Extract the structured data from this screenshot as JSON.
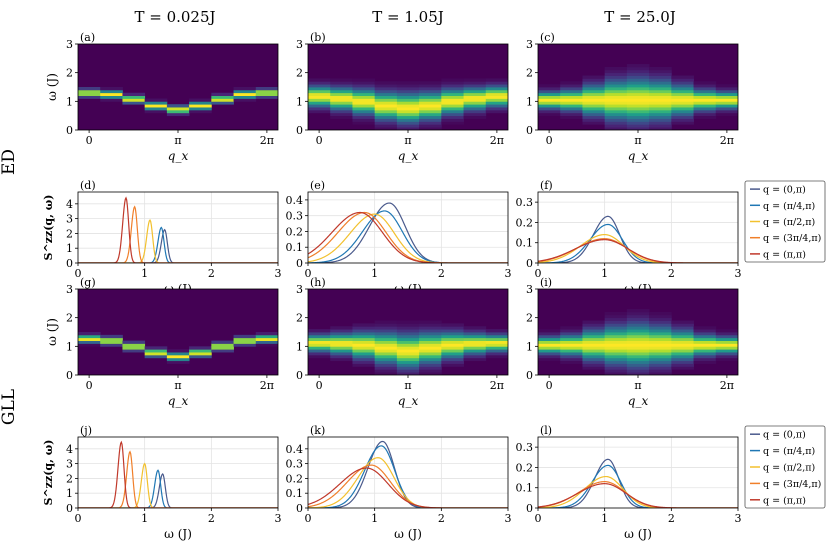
{
  "columns": [
    "T = 0.025J",
    "T = 1.05J",
    "T = 25.0J"
  ],
  "rows": [
    "ED",
    "GLL"
  ],
  "colors": {
    "series": [
      "#4a5a8c",
      "#1f77b4",
      "#f2c12e",
      "#f07f2a",
      "#c0392b"
    ],
    "heatmap_bg": "#440154",
    "legend_border": "#555555"
  },
  "legend": [
    "q = (0,π)",
    "q = (π/4,π)",
    "q = (π/2,π)",
    "q = (3π/4,π)",
    "q = (π,π)"
  ],
  "chart_data": [
    {
      "type": "heatmap",
      "panel": "(a)",
      "row": "ED",
      "column": "T = 0.025J",
      "xlabel": "q_x",
      "ylabel": "ω (J)",
      "xticks": [
        "0",
        "π",
        "2π"
      ],
      "ylim": [
        0,
        3
      ],
      "yticks": [
        0,
        1,
        2,
        3
      ],
      "peak_omega": [
        1.3,
        1.25,
        1.08,
        0.85,
        0.72,
        0.85,
        1.08,
        1.25,
        1.3
      ],
      "width": [
        0.05,
        0.05,
        0.05,
        0.05,
        0.05,
        0.05,
        0.05,
        0.05,
        0.05
      ]
    },
    {
      "type": "heatmap",
      "panel": "(b)",
      "row": "ED",
      "column": "T = 1.05J",
      "xlabel": "q_x",
      "ylabel": "",
      "xticks": [
        "0",
        "π",
        "2π"
      ],
      "ylim": [
        0,
        3
      ],
      "yticks": [
        0,
        1,
        2,
        3
      ],
      "peak_omega": [
        1.18,
        1.1,
        1.0,
        0.85,
        0.78,
        0.85,
        1.0,
        1.1,
        1.18
      ],
      "width": [
        0.22,
        0.24,
        0.27,
        0.3,
        0.32,
        0.3,
        0.27,
        0.24,
        0.22
      ]
    },
    {
      "type": "heatmap",
      "panel": "(c)",
      "row": "ED",
      "column": "T = 25.0J",
      "xlabel": "q_x",
      "ylabel": "",
      "xticks": [
        "0",
        "π",
        "2π"
      ],
      "ylim": [
        0,
        3
      ],
      "yticks": [
        0,
        1,
        2,
        3
      ],
      "peak_omega": [
        1.05,
        1.05,
        1.05,
        1.05,
        1.05,
        1.05,
        1.05,
        1.05,
        1.05
      ],
      "width": [
        0.18,
        0.22,
        0.32,
        0.42,
        0.46,
        0.42,
        0.32,
        0.22,
        0.18
      ]
    },
    {
      "type": "line",
      "panel": "(d)",
      "row": "ED",
      "column": "T = 0.025J",
      "xlabel": "ω (J)",
      "ylabel": "S^zz(q, ω)",
      "xlim": [
        0,
        3
      ],
      "ylim": [
        0,
        4.8
      ],
      "xticks": [
        0,
        1,
        2,
        3
      ],
      "yticks": [
        0,
        1,
        2,
        3,
        4
      ],
      "series": [
        {
          "name": "q = (0,π)",
          "peak": 1.3,
          "width": 0.05,
          "height": 2.25
        },
        {
          "name": "q = (π/4,π)",
          "peak": 1.25,
          "width": 0.05,
          "height": 2.4
        },
        {
          "name": "q = (π/2,π)",
          "peak": 1.08,
          "width": 0.05,
          "height": 2.9
        },
        {
          "name": "q = (3π/4,π)",
          "peak": 0.85,
          "width": 0.05,
          "height": 3.8
        },
        {
          "name": "q = (π,π)",
          "peak": 0.72,
          "width": 0.05,
          "height": 4.4
        }
      ]
    },
    {
      "type": "line",
      "panel": "(e)",
      "row": "ED",
      "column": "T = 1.05J",
      "xlabel": "ω (J)",
      "ylabel": "",
      "xlim": [
        0,
        3
      ],
      "ylim": [
        0,
        0.45
      ],
      "xticks": [
        0,
        1,
        2,
        3
      ],
      "yticks": [
        0,
        0.1,
        0.2,
        0.3,
        0.4
      ],
      "series": [
        {
          "name": "q = (0,π)",
          "peak": 1.22,
          "width": 0.3,
          "height": 0.38
        },
        {
          "name": "q = (π/4,π)",
          "peak": 1.15,
          "width": 0.33,
          "height": 0.33
        },
        {
          "name": "q = (π/2,π)",
          "peak": 1.0,
          "width": 0.37,
          "height": 0.31
        },
        {
          "name": "q = (3π/4,π)",
          "peak": 0.85,
          "width": 0.4,
          "height": 0.32
        },
        {
          "name": "q = (π,π)",
          "peak": 0.78,
          "width": 0.42,
          "height": 0.32
        }
      ]
    },
    {
      "type": "line",
      "panel": "(f)",
      "row": "ED",
      "column": "T = 25.0J",
      "xlabel": "ω (J)",
      "ylabel": "",
      "xlim": [
        0,
        3
      ],
      "ylim": [
        0,
        0.35
      ],
      "xticks": [
        0,
        1,
        2,
        3
      ],
      "yticks": [
        0,
        0.1,
        0.2,
        0.3
      ],
      "series": [
        {
          "name": "q = (0,π)",
          "peak": 1.05,
          "width": 0.22,
          "height": 0.23
        },
        {
          "name": "q = (π/4,π)",
          "peak": 1.05,
          "width": 0.27,
          "height": 0.19
        },
        {
          "name": "q = (π/2,π)",
          "peak": 1.0,
          "width": 0.36,
          "height": 0.14
        },
        {
          "name": "q = (3π/4,π)",
          "peak": 1.0,
          "width": 0.42,
          "height": 0.12
        },
        {
          "name": "q = (π,π)",
          "peak": 1.0,
          "width": 0.44,
          "height": 0.115
        }
      ]
    },
    {
      "type": "heatmap",
      "panel": "(g)",
      "row": "GLL",
      "column": "T = 0.025J",
      "xlabel": "q_x",
      "ylabel": "ω (J)",
      "xticks": [
        "0",
        "π",
        "2π"
      ],
      "ylim": [
        0,
        3
      ],
      "yticks": [
        0,
        1,
        2,
        3
      ],
      "peak_omega": [
        1.27,
        1.2,
        1.0,
        0.78,
        0.65,
        0.78,
        1.0,
        1.2,
        1.27
      ],
      "width": [
        0.05,
        0.05,
        0.05,
        0.05,
        0.05,
        0.05,
        0.05,
        0.05,
        0.05
      ]
    },
    {
      "type": "heatmap",
      "panel": "(h)",
      "row": "GLL",
      "column": "T = 1.05J",
      "xlabel": "q_x",
      "ylabel": "",
      "xticks": [
        "0",
        "π",
        "2π"
      ],
      "ylim": [
        0,
        3
      ],
      "yticks": [
        0,
        1,
        2,
        3
      ],
      "peak_omega": [
        1.12,
        1.1,
        1.05,
        0.95,
        0.85,
        0.95,
        1.05,
        1.1,
        1.12
      ],
      "width": [
        0.18,
        0.22,
        0.28,
        0.33,
        0.36,
        0.33,
        0.28,
        0.22,
        0.18
      ]
    },
    {
      "type": "heatmap",
      "panel": "(i)",
      "row": "GLL",
      "column": "T = 25.0J",
      "xlabel": "q_x",
      "ylabel": "",
      "xticks": [
        "0",
        "π",
        "2π"
      ],
      "ylim": [
        0,
        3
      ],
      "yticks": [
        0,
        1,
        2,
        3
      ],
      "peak_omega": [
        1.05,
        1.05,
        1.05,
        1.05,
        1.05,
        1.05,
        1.05,
        1.05,
        1.05
      ],
      "width": [
        0.18,
        0.22,
        0.32,
        0.4,
        0.45,
        0.4,
        0.32,
        0.22,
        0.18
      ]
    },
    {
      "type": "line",
      "panel": "(j)",
      "row": "GLL",
      "column": "T = 0.025J",
      "xlabel": "ω (J)",
      "ylabel": "S^zz(q, ω)",
      "xlim": [
        0,
        3
      ],
      "ylim": [
        0,
        4.8
      ],
      "xticks": [
        0,
        1,
        2,
        3
      ],
      "yticks": [
        0,
        1,
        2,
        3,
        4
      ],
      "series": [
        {
          "name": "q = (0,π)",
          "peak": 1.27,
          "width": 0.05,
          "height": 2.3
        },
        {
          "name": "q = (π/4,π)",
          "peak": 1.2,
          "width": 0.05,
          "height": 2.55
        },
        {
          "name": "q = (π/2,π)",
          "peak": 1.0,
          "width": 0.05,
          "height": 3.0
        },
        {
          "name": "q = (3π/4,π)",
          "peak": 0.78,
          "width": 0.05,
          "height": 3.8
        },
        {
          "name": "q = (π,π)",
          "peak": 0.65,
          "width": 0.05,
          "height": 4.45
        }
      ]
    },
    {
      "type": "line",
      "panel": "(k)",
      "row": "GLL",
      "column": "T = 1.05J",
      "xlabel": "ω (J)",
      "ylabel": "",
      "xlim": [
        0,
        3
      ],
      "ylim": [
        0,
        0.48
      ],
      "xticks": [
        0,
        1,
        2,
        3
      ],
      "yticks": [
        0,
        0.1,
        0.2,
        0.3,
        0.4
      ],
      "series": [
        {
          "name": "q = (0,π)",
          "peak": 1.12,
          "width": 0.22,
          "height": 0.45
        },
        {
          "name": "q = (π/4,π)",
          "peak": 1.1,
          "width": 0.25,
          "height": 0.42
        },
        {
          "name": "q = (π/2,π)",
          "peak": 1.05,
          "width": 0.3,
          "height": 0.34
        },
        {
          "name": "q = (3π/4,π)",
          "peak": 0.95,
          "width": 0.36,
          "height": 0.29
        },
        {
          "name": "q = (π,π)",
          "peak": 0.88,
          "width": 0.4,
          "height": 0.27
        }
      ]
    },
    {
      "type": "line",
      "panel": "(l)",
      "row": "GLL",
      "column": "T = 25.0J",
      "xlabel": "ω (J)",
      "ylabel": "",
      "xlim": [
        0,
        3
      ],
      "ylim": [
        0,
        0.35
      ],
      "xticks": [
        0,
        1,
        2,
        3
      ],
      "yticks": [
        0,
        0.1,
        0.2,
        0.3
      ],
      "series": [
        {
          "name": "q = (0,π)",
          "peak": 1.05,
          "width": 0.2,
          "height": 0.24
        },
        {
          "name": "q = (π/4,π)",
          "peak": 1.05,
          "width": 0.24,
          "height": 0.21
        },
        {
          "name": "q = (π/2,π)",
          "peak": 1.02,
          "width": 0.32,
          "height": 0.155
        },
        {
          "name": "q = (3π/4,π)",
          "peak": 1.0,
          "width": 0.38,
          "height": 0.13
        },
        {
          "name": "q = (π,π)",
          "peak": 1.0,
          "width": 0.4,
          "height": 0.12
        }
      ]
    }
  ]
}
